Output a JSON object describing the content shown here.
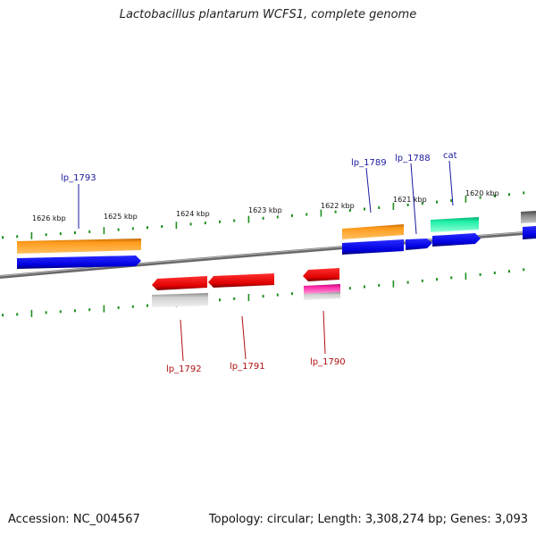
{
  "title": "Lactobacillus plantarum WCFS1, complete genome",
  "footer": {
    "accession": "Accession: NC_004567",
    "summary": "Topology: circular; Length: 3,308,274 bp; Genes: 3,093"
  },
  "scale": {
    "unit": "kbp",
    "labels": [
      "1626 kbp",
      "1625 kbp",
      "1624 kbp",
      "1623 kbp",
      "1622 kbp",
      "1621 kbp",
      "1620 kbp"
    ]
  },
  "gene_labels": {
    "top": [
      "lp_1793",
      "lp_1789",
      "lp_1788",
      "cat"
    ],
    "bottom": [
      "lp_1792",
      "lp_1791",
      "lp_1790"
    ]
  },
  "colors": {
    "forward_gene": "#0000ee",
    "reverse_gene": "#ee0000",
    "orange_feature": "#f08a00",
    "teal_feature": "#00d890",
    "magenta_feature": "#e0008a",
    "gray_feature": "#b8b8b8",
    "dark_feature": "#6c6c6c",
    "tick_color": "#1f8f1f",
    "backbone": "#7a7a7a"
  }
}
